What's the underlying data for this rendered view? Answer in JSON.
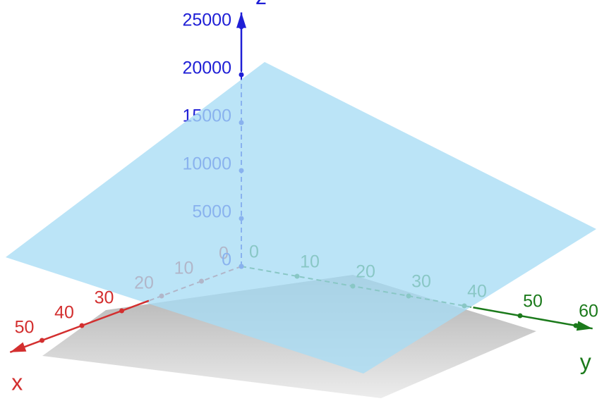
{
  "chart_data": {
    "type": "plane3d",
    "x_label": "x",
    "y_label": "y",
    "z_label": "z",
    "xlim": [
      0,
      58
    ],
    "ylim": [
      0,
      63
    ],
    "zlim": [
      0,
      26500
    ],
    "xticks": [
      0,
      10,
      20,
      30,
      40,
      50
    ],
    "yticks": [
      0,
      10,
      20,
      30,
      40,
      50,
      60
    ],
    "zticks": [
      0,
      5000,
      10000,
      15000,
      20000,
      25000
    ],
    "x_color": "#d32f2f",
    "y_color": "#1b7a1b",
    "z_color": "#1f1fd6",
    "plane_color": "#a8dcf5"
  }
}
